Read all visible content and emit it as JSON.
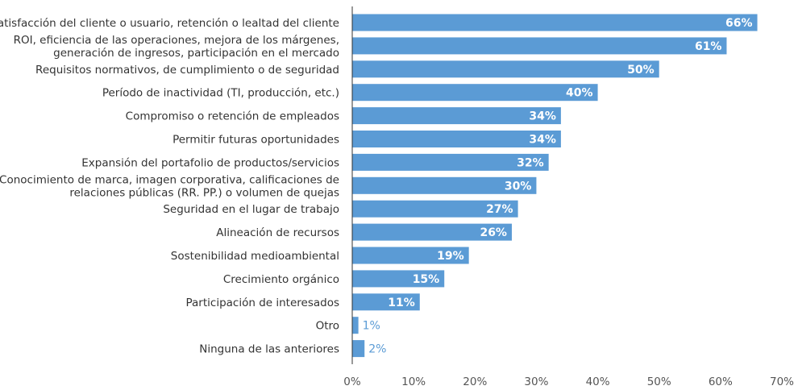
{
  "chart_data": {
    "type": "bar",
    "orientation": "horizontal",
    "categories": [
      [
        "Satisfacción del cliente o usuario, retención o lealtad del cliente"
      ],
      [
        "ROI, eficiencia de las operaciones, mejora de los márgenes,",
        "generación de ingresos, participación en el mercado"
      ],
      [
        "Requisitos normativos, de cumplimiento o de seguridad"
      ],
      [
        "Período de inactividad (TI, producción, etc.)"
      ],
      [
        "Compromiso o retención de empleados"
      ],
      [
        "Permitir futuras oportunidades"
      ],
      [
        "Expansión del portafolio de productos/servicios"
      ],
      [
        "Conocimiento de marca, imagen corporativa, calificaciones de",
        "relaciones públicas (RR. PP.) o volumen de quejas"
      ],
      [
        "Seguridad en el lugar de trabajo"
      ],
      [
        "Alineación de recursos"
      ],
      [
        "Sostenibilidad medioambiental"
      ],
      [
        "Crecimiento orgánico"
      ],
      [
        "Participación de interesados"
      ],
      [
        "Otro"
      ],
      [
        "Ninguna de las anteriores"
      ]
    ],
    "values": [
      66,
      61,
      50,
      40,
      34,
      34,
      32,
      30,
      27,
      26,
      19,
      15,
      11,
      1,
      2
    ],
    "value_labels": [
      "66%",
      "61%",
      "50%",
      "40%",
      "34%",
      "34%",
      "32%",
      "30%",
      "27%",
      "26%",
      "19%",
      "15%",
      "11%",
      "1%",
      "2%"
    ],
    "xlim": [
      0,
      70
    ],
    "xticks": [
      0,
      10,
      20,
      30,
      40,
      50,
      60,
      70
    ],
    "xtick_labels": [
      "0%",
      "10%",
      "20%",
      "30%",
      "40%",
      "50%",
      "60%",
      "70%"
    ],
    "bar_color": "#5b9bd5",
    "grid": false
  }
}
